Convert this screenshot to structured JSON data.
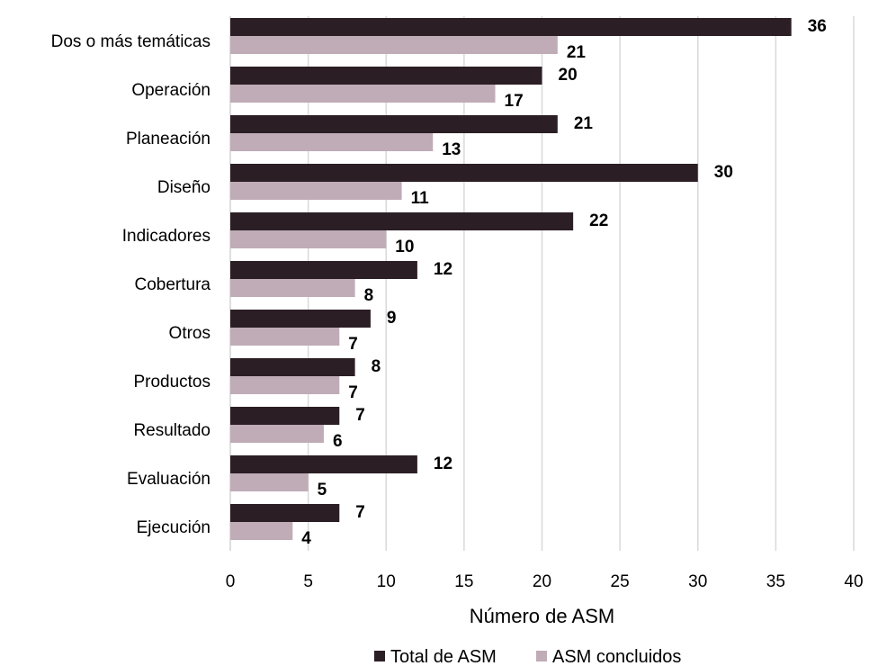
{
  "chart_data": {
    "type": "bar",
    "orientation": "horizontal",
    "categories": [
      "Dos o más temáticas",
      "Operación",
      "Planeación",
      "Diseño",
      "Indicadores",
      "Cobertura",
      "Otros",
      "Productos",
      "Resultado",
      "Evaluación",
      "Ejecución"
    ],
    "series": [
      {
        "name": "Total de ASM",
        "color": "#2b1e24",
        "values": [
          36,
          20,
          21,
          30,
          22,
          12,
          9,
          8,
          7,
          12,
          7
        ]
      },
      {
        "name": "ASM concluidos",
        "color": "#bfacb7",
        "values": [
          21,
          17,
          13,
          11,
          10,
          8,
          7,
          7,
          6,
          5,
          4
        ]
      }
    ],
    "xlim": [
      0,
      40
    ],
    "xticks": [
      "0",
      "5",
      "10",
      "15",
      "20",
      "25",
      "30",
      "35",
      "40"
    ],
    "xlabel": "Número de ASM",
    "ylabel": "",
    "title": "",
    "grid": "vertical",
    "legend_position": "bottom"
  }
}
